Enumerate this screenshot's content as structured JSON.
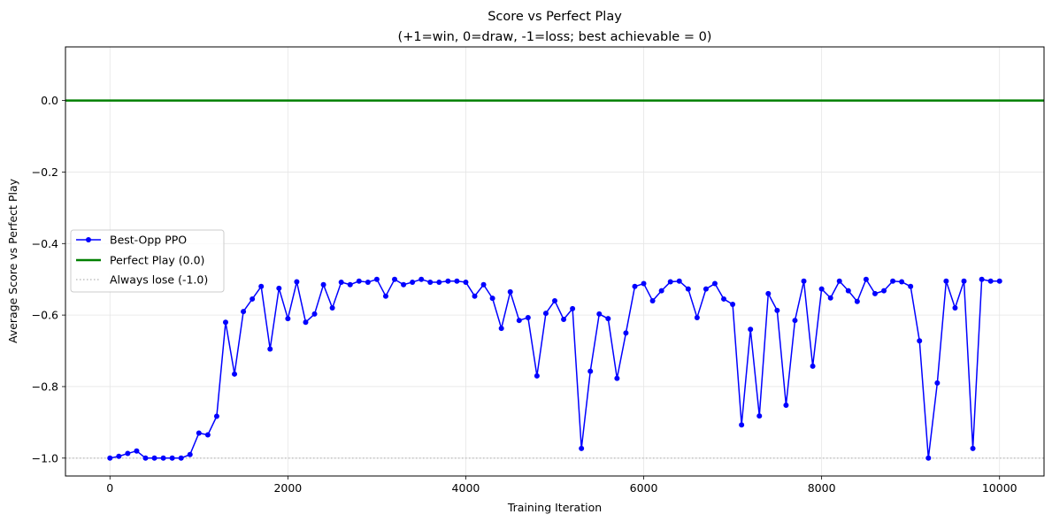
{
  "chart_data": {
    "type": "line",
    "title": "Score vs Perfect Play",
    "subtitle": "(+1=win, 0=draw, -1=loss; best achievable = 0)",
    "xlabel": "Training Iteration",
    "ylabel": "Average Score vs Perfect Play",
    "xlim": [
      -500,
      10500
    ],
    "ylim": [
      -1.05,
      0.15
    ],
    "x_ticks": [
      0,
      2000,
      4000,
      6000,
      8000,
      10000
    ],
    "x_tick_labels": [
      "0",
      "2000",
      "4000",
      "6000",
      "8000",
      "10000"
    ],
    "y_ticks": [
      -1.0,
      -0.8,
      -0.6,
      -0.4,
      -0.2,
      0.0
    ],
    "y_tick_labels": [
      "−1.0",
      "−0.8",
      "−0.6",
      "−0.4",
      "−0.2",
      "0.0"
    ],
    "grid": true,
    "legend_position": "center-left",
    "series": [
      {
        "name": "Best-Opp PPO",
        "color": "#0000ff",
        "style": "line-with-circle-markers",
        "x": [
          0,
          100,
          200,
          300,
          400,
          500,
          600,
          700,
          800,
          900,
          1000,
          1100,
          1200,
          1300,
          1400,
          1500,
          1600,
          1700,
          1800,
          1900,
          2000,
          2100,
          2200,
          2300,
          2400,
          2500,
          2600,
          2700,
          2800,
          2900,
          3000,
          3100,
          3200,
          3300,
          3400,
          3500,
          3600,
          3700,
          3800,
          3900,
          4000,
          4100,
          4200,
          4300,
          4400,
          4500,
          4600,
          4700,
          4800,
          4900,
          5000,
          5100,
          5200,
          5300,
          5400,
          5500,
          5600,
          5700,
          5800,
          5900,
          6000,
          6100,
          6200,
          6300,
          6400,
          6500,
          6600,
          6700,
          6800,
          6900,
          7000,
          7100,
          7200,
          7300,
          7400,
          7500,
          7600,
          7700,
          7800,
          7900,
          8000,
          8100,
          8200,
          8300,
          8400,
          8500,
          8600,
          8700,
          8800,
          8900,
          9000,
          9100,
          9200,
          9300,
          9400,
          9500,
          9600,
          9700,
          9800,
          9900,
          10000
        ],
        "y": [
          -1.0,
          -0.995,
          -0.987,
          -0.98,
          -1.0,
          -1.0,
          -1.0,
          -1.0,
          -1.0,
          -0.99,
          -0.93,
          -0.935,
          -0.883,
          -0.62,
          -0.765,
          -0.59,
          -0.555,
          -0.52,
          -0.695,
          -0.525,
          -0.61,
          -0.507,
          -0.62,
          -0.597,
          -0.515,
          -0.58,
          -0.508,
          -0.515,
          -0.505,
          -0.508,
          -0.5,
          -0.547,
          -0.5,
          -0.515,
          -0.508,
          -0.5,
          -0.508,
          -0.508,
          -0.505,
          -0.505,
          -0.508,
          -0.547,
          -0.515,
          -0.553,
          -0.637,
          -0.535,
          -0.615,
          -0.607,
          -0.77,
          -0.595,
          -0.56,
          -0.612,
          -0.582,
          -0.973,
          -0.757,
          -0.597,
          -0.61,
          -0.777,
          -0.65,
          -0.52,
          -0.512,
          -0.56,
          -0.532,
          -0.507,
          -0.505,
          -0.527,
          -0.607,
          -0.527,
          -0.512,
          -0.555,
          -0.57,
          -0.907,
          -0.64,
          -0.882,
          -0.54,
          -0.587,
          -0.852,
          -0.615,
          -0.505,
          -0.743,
          -0.527,
          -0.552,
          -0.505,
          -0.532,
          -0.562,
          -0.5,
          -0.54,
          -0.532,
          -0.505,
          -0.507,
          -0.52,
          -0.672,
          -1.0,
          -0.79,
          -0.505,
          -0.58,
          -0.505,
          -0.973,
          -0.5,
          -0.505,
          -0.505
        ]
      },
      {
        "name": "Perfect Play (0.0)",
        "color": "#008000",
        "style": "horizontal-solid",
        "y": 0.0
      },
      {
        "name": "Always lose (-1.0)",
        "color": "#bfbfbf",
        "style": "horizontal-dotted",
        "y": -1.0
      }
    ]
  }
}
